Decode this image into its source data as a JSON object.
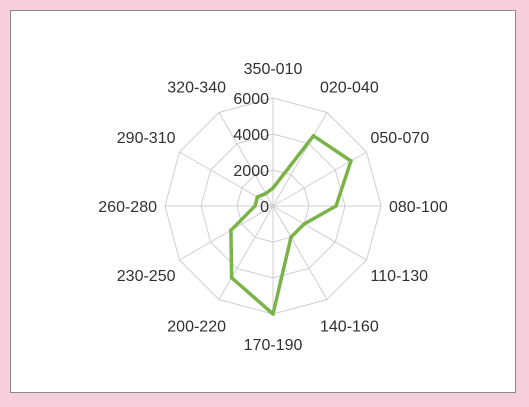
{
  "colors": {
    "background": "#f7cfdc",
    "panel": "#ffffff",
    "grid": "#cfcfcf",
    "series": "#7ab348",
    "text": "#303030"
  },
  "chart_data": {
    "type": "radar",
    "title": "",
    "categories": [
      "350-010",
      "020-040",
      "050-070",
      "080-100",
      "110-130",
      "140-160",
      "170-190",
      "200-220",
      "230-250",
      "260-280",
      "290-310",
      "320-340"
    ],
    "rlim": [
      0,
      6000
    ],
    "ticks": [
      0,
      2000,
      4000,
      6000
    ],
    "tick_labels": [
      "0",
      "2000",
      "4000",
      "6000"
    ],
    "grid": true,
    "legend": "none",
    "series": [
      {
        "values": [
          1000,
          4500,
          5000,
          3500,
          2000,
          2000,
          6000,
          4600,
          2700,
          1000,
          1000,
          800
        ]
      }
    ]
  }
}
